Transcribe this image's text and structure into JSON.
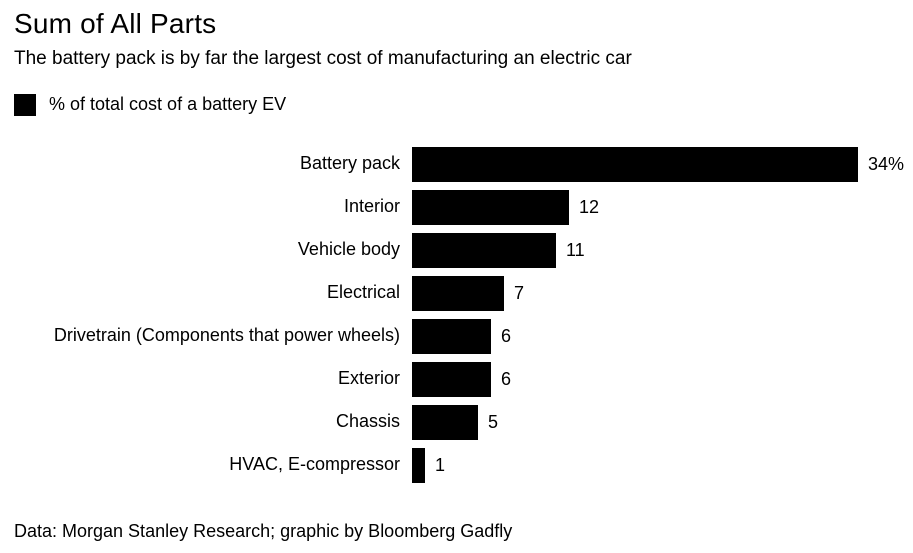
{
  "header": {
    "title": "Sum of All Parts",
    "subtitle": "The battery pack is by far the largest cost of manufacturing an electric car"
  },
  "legend": {
    "label": "% of total cost of a battery EV",
    "swatch_color": "#000000"
  },
  "chart_data": {
    "type": "bar",
    "orientation": "horizontal",
    "title": "Sum of All Parts",
    "subtitle": "The battery pack is by far the largest cost of manufacturing an electric car",
    "series_name": "% of total cost of a battery EV",
    "categories": [
      "Battery pack",
      "Interior",
      "Vehicle body",
      "Electrical",
      "Drivetrain (Components that power wheels)",
      "Exterior",
      "Chassis",
      "HVAC, E-compressor"
    ],
    "values": [
      34,
      12,
      11,
      7,
      6,
      6,
      5,
      1
    ],
    "value_labels": [
      "34%",
      "12",
      "11",
      "7",
      "6",
      "6",
      "5",
      "1"
    ],
    "bar_color": "#000000",
    "xlabel": "",
    "ylabel": "",
    "xlim": [
      0,
      34
    ],
    "grid": false,
    "legend_position": "top-left"
  },
  "footer": {
    "source": "Data: Morgan Stanley Research; graphic by Bloomberg Gadfly"
  }
}
